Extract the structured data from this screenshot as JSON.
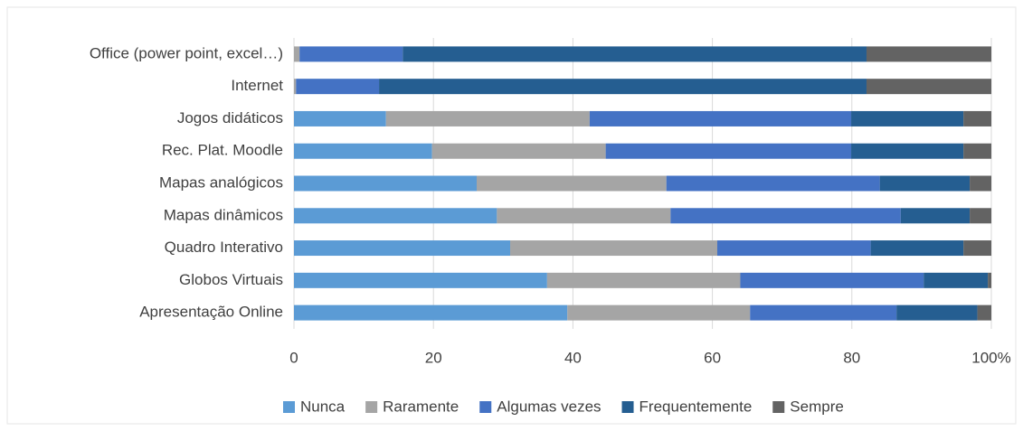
{
  "chart_data": {
    "type": "stacked_bar_horizontal",
    "categories": [
      "Office (power point, excel…)",
      "Internet",
      "Jogos didáticos",
      "Rec. Plat. Moodle",
      "Mapas analógicos",
      "Mapas dinâmicos",
      "Quadro Interativo",
      "Globos Virtuais",
      "Apresentação Online"
    ],
    "series": [
      {
        "name": "Nunca",
        "color": "#5b9bd5",
        "values": [
          0,
          0,
          13.2,
          19.8,
          26.2,
          29.1,
          31,
          36.3,
          39.2
        ]
      },
      {
        "name": "Raramente",
        "color": "#a5a5a5",
        "values": [
          0.8,
          0.3,
          29.2,
          24.9,
          27.2,
          24.9,
          29.7,
          27.7,
          26.2
        ]
      },
      {
        "name": "Algumas vezes",
        "color": "#4472c4",
        "values": [
          14.8,
          11.9,
          37.5,
          35.2,
          30.6,
          33,
          22,
          26.3,
          21
        ]
      },
      {
        "name": "Frequentemente",
        "color": "#255e91",
        "values": [
          66.5,
          69.9,
          16.1,
          16.1,
          12.9,
          9.9,
          13.3,
          9.2,
          11.6
        ]
      },
      {
        "name": "Sempre",
        "color": "#636363",
        "values": [
          17.9,
          17.9,
          4,
          4,
          3.1,
          3.1,
          4,
          0.5,
          2
        ]
      }
    ],
    "xlim": [
      0,
      100
    ],
    "xticks": [
      0,
      20,
      40,
      60,
      80,
      {
        "value": 100,
        "label": "100%"
      }
    ],
    "grid": true,
    "legend": "bottom"
  }
}
